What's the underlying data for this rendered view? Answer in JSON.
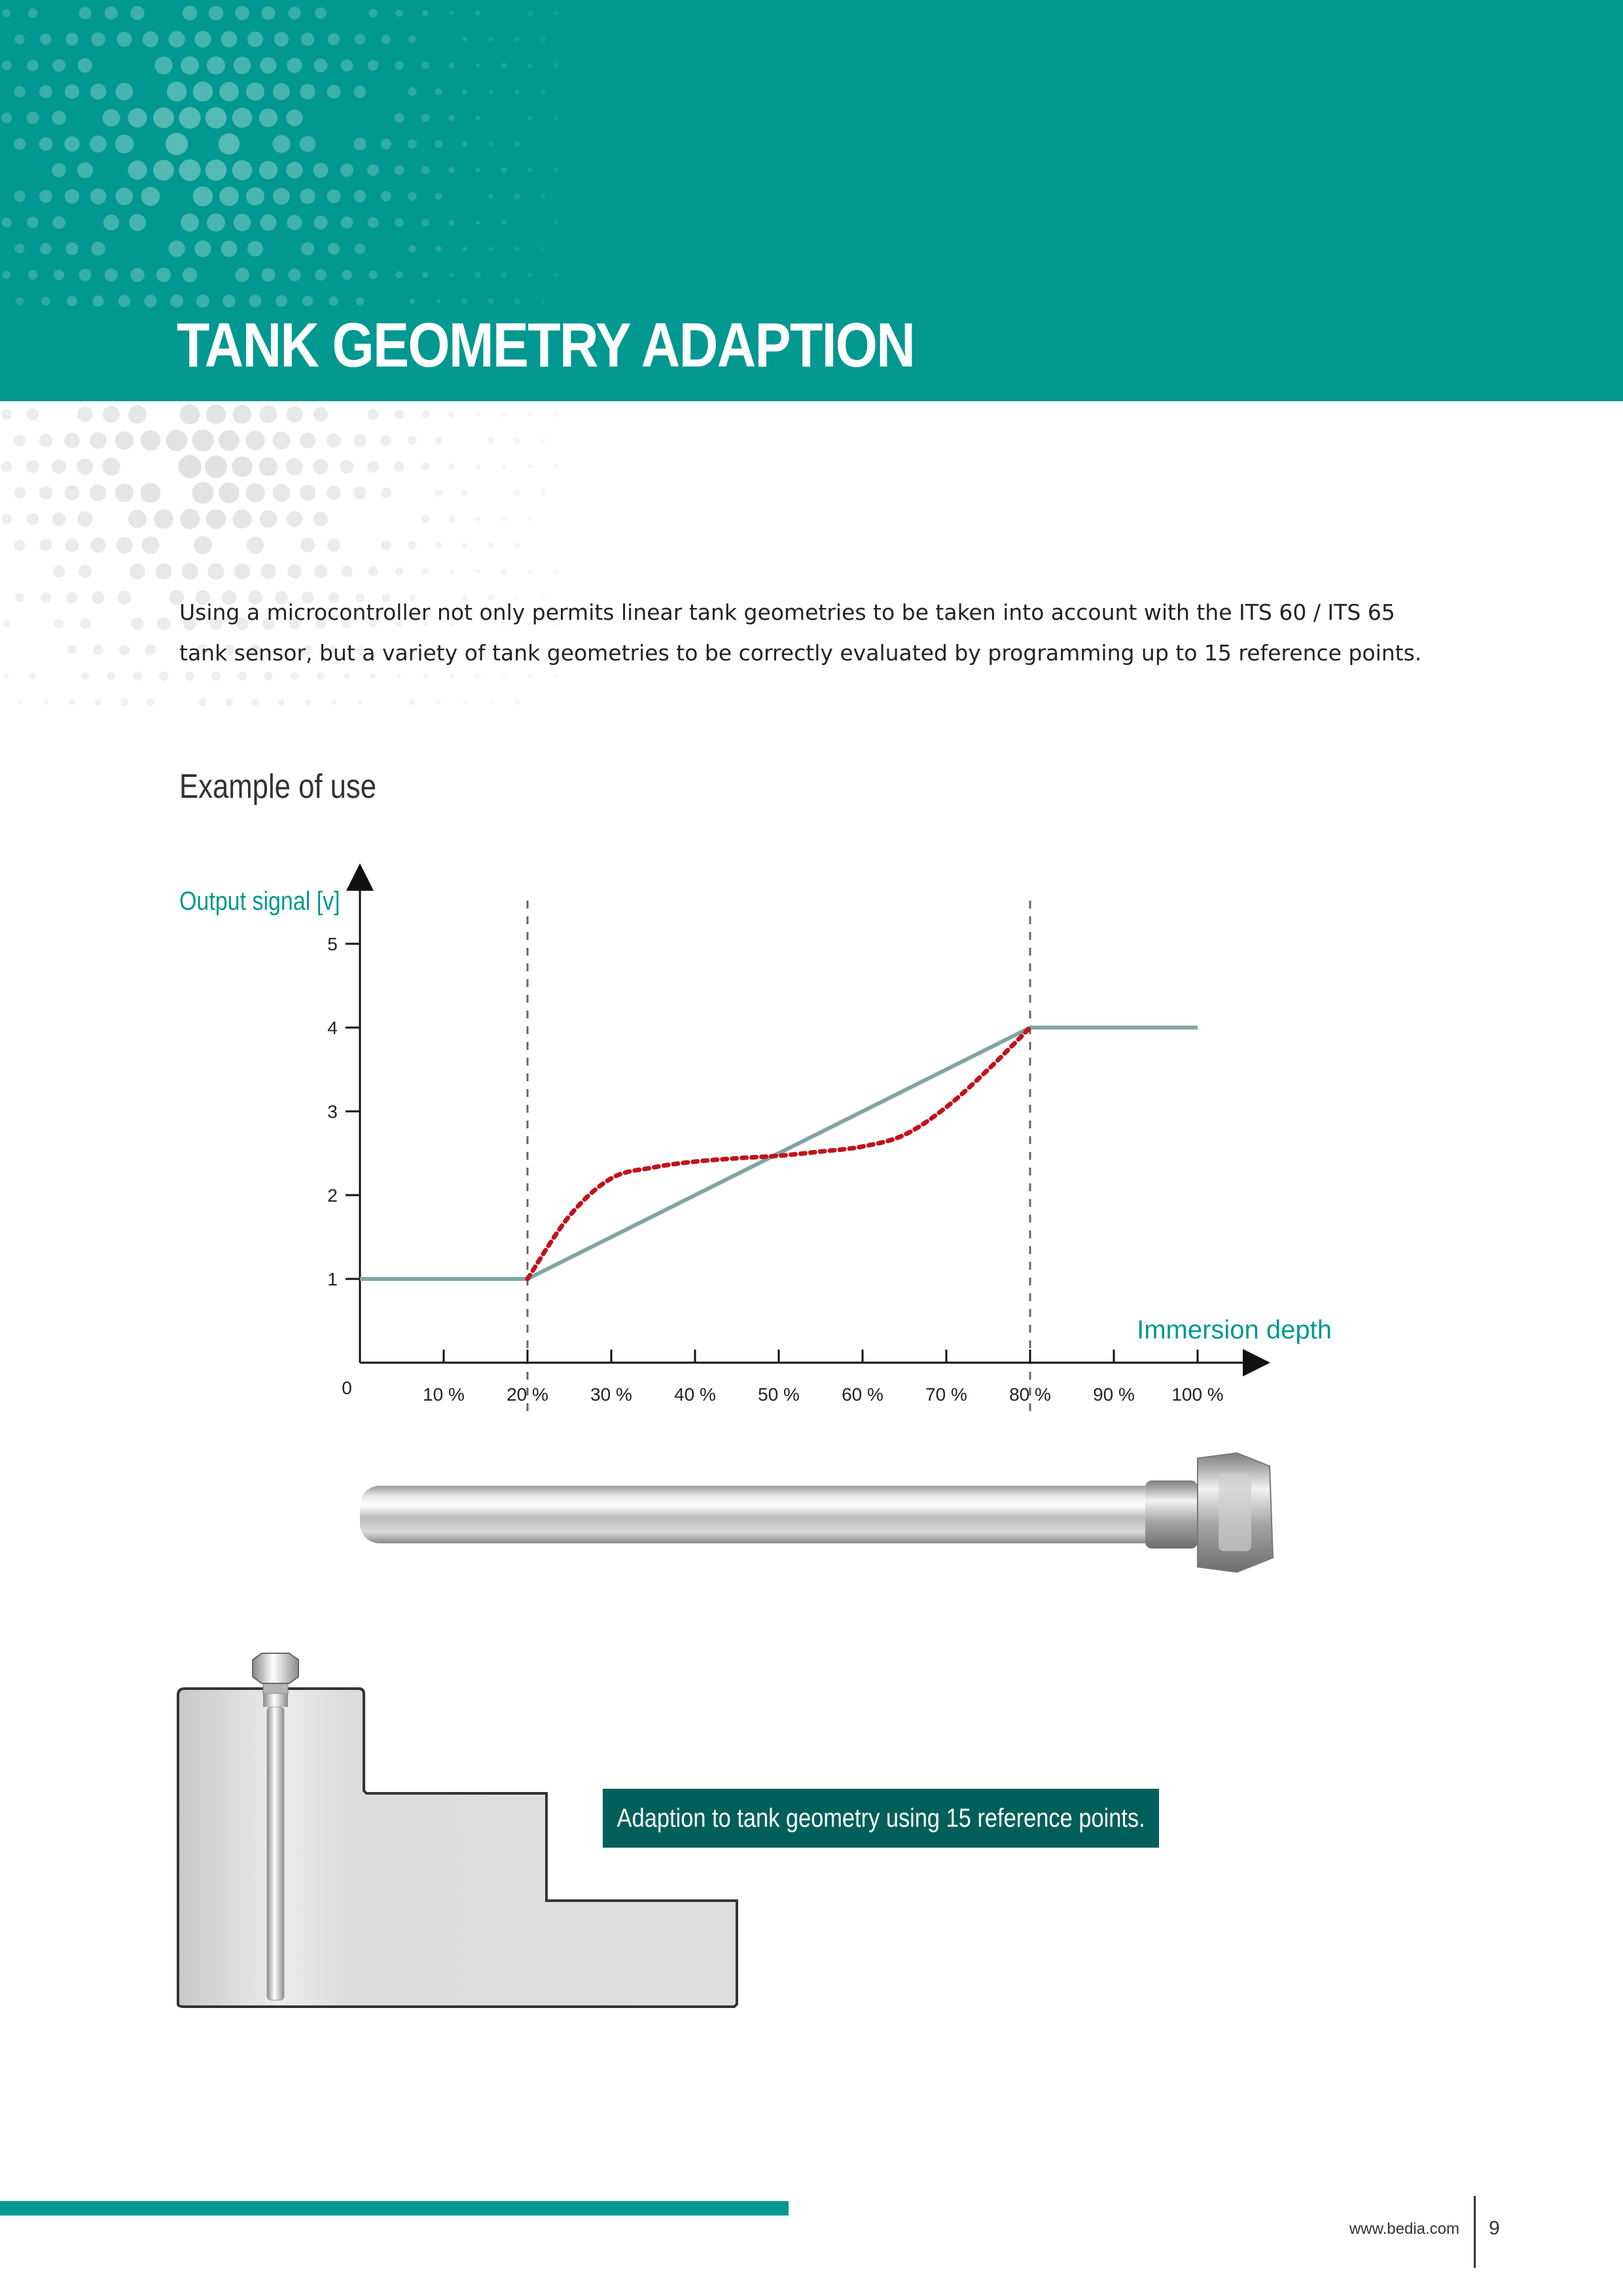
{
  "header": {
    "title": "TANK GEOMETRY ADAPTION"
  },
  "intro": {
    "text": "Using a microcontroller not only permits linear tank geometries to be taken into account with the ITS 60 / ITS 65 tank sensor, but a variety of tank geometries to be correctly evaluated by programming up to 15 reference points."
  },
  "section": {
    "title": "Example of use"
  },
  "colors": {
    "brand": "#009890",
    "brand_dark": "#005f5a",
    "linear_line": "#7fa7a3",
    "curve": "#c0141c"
  },
  "chart_data": {
    "type": "line",
    "ylabel": "Output signal [v]",
    "xlabel": "Immersion depth",
    "origin_label": "0",
    "x_ticks": [
      "10 %",
      "20 %",
      "30 %",
      "40 %",
      "50 %",
      "60 %",
      "70 %",
      "80 %",
      "90 %",
      "100 %"
    ],
    "y_ticks": [
      "1",
      "2",
      "3",
      "4",
      "5"
    ],
    "xlim": [
      0,
      100
    ],
    "ylim": [
      0,
      5
    ],
    "reference_lines_x": [
      20,
      80
    ],
    "series": [
      {
        "style": "solid",
        "x": [
          0,
          20,
          80,
          100
        ],
        "y": [
          1,
          1,
          4,
          4
        ]
      },
      {
        "style": "dotted",
        "x": [
          20,
          25,
          30,
          35,
          40,
          45,
          50,
          55,
          60,
          65,
          70,
          75,
          80
        ],
        "y": [
          1.0,
          1.75,
          2.2,
          2.33,
          2.4,
          2.44,
          2.47,
          2.52,
          2.58,
          2.72,
          3.05,
          3.5,
          4.0
        ]
      }
    ]
  },
  "caption": "Adaption to tank geometry using 15 reference points.",
  "footer": {
    "url": "www.bedia.com",
    "page": "9"
  }
}
